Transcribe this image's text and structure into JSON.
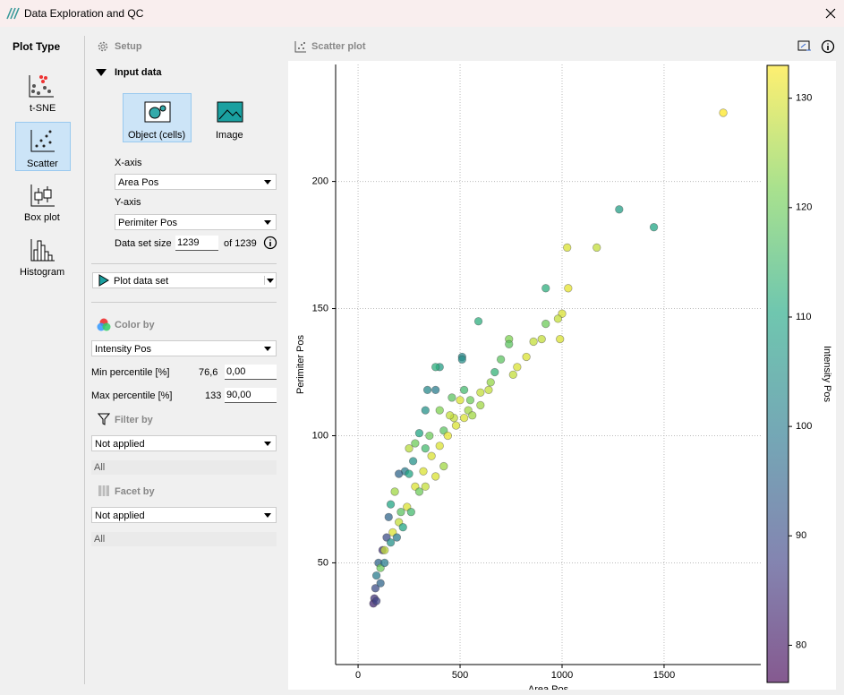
{
  "window": {
    "title": "Data Exploration and QC"
  },
  "plot_types": {
    "heading": "Plot Type",
    "items": [
      "t-SNE",
      "Scatter",
      "Box plot",
      "Histogram"
    ],
    "selected": "Scatter"
  },
  "setup": {
    "heading": "Setup",
    "input_heading": "Input data",
    "sources": [
      "Object (cells)",
      "Image"
    ],
    "x_label": "X-axis",
    "x_value": "Area Pos",
    "y_label": "Y-axis",
    "y_value": "Perimiter Pos",
    "size_label": "Data set size",
    "size_value": "1239",
    "size_total": "of 1239",
    "plot_button": "Plot data set",
    "color_heading": "Color by",
    "color_value": "Intensity Pos",
    "min_label": "Min percentile [%]",
    "min_actual": "76,6",
    "min_value": "0,00",
    "max_label": "Max percentile [%]",
    "max_actual": "133",
    "max_value": "90,00",
    "filter_heading": "Filter by",
    "filter_value": "Not applied",
    "filter_sub": "All",
    "facet_heading": "Facet by",
    "facet_value": "Not applied",
    "facet_sub": "All"
  },
  "plot_panel": {
    "heading": "Scatter plot"
  },
  "chart_data": {
    "type": "scatter",
    "xlabel": "Area Pos",
    "ylabel": "Perimiter Pos",
    "colorbar_label": "Intensity Pos",
    "xlim": [
      -110,
      1974
    ],
    "ylim": [
      10,
      246
    ],
    "xticks": [
      0,
      500,
      1000,
      1500
    ],
    "yticks": [
      50,
      100,
      150,
      200
    ],
    "grid": true,
    "clim": [
      76.6,
      133
    ],
    "cticks": [
      80,
      90,
      100,
      110,
      120,
      130
    ],
    "colormap": [
      "#440154",
      "#414487",
      "#2a788e",
      "#22a884",
      "#7ad151",
      "#fde725"
    ],
    "x": [
      1790,
      1280,
      1450,
      1170,
      1025,
      1030,
      1000,
      980,
      920,
      920,
      990,
      900,
      860,
      825,
      780,
      760,
      740,
      740,
      700,
      670,
      650,
      640,
      600,
      590,
      510,
      510,
      400,
      380,
      340,
      380,
      520,
      550,
      540,
      500,
      470,
      420,
      300,
      280,
      250,
      230,
      200,
      180,
      160,
      150,
      140,
      120,
      100,
      90,
      85,
      80,
      75,
      90,
      110,
      130,
      170,
      200,
      240,
      280,
      320,
      360,
      400,
      440,
      480,
      520,
      300,
      260,
      220,
      190,
      250,
      350,
      450,
      600,
      560,
      420,
      380,
      330,
      210,
      160,
      130,
      110,
      270,
      330,
      400,
      460,
      330
    ],
    "values": [
      227,
      189,
      182,
      174,
      174,
      158,
      148,
      146,
      144,
      158,
      138,
      138,
      137,
      131,
      127,
      124,
      138,
      136,
      130,
      125,
      121,
      118,
      117,
      145,
      131,
      130,
      127,
      127,
      118,
      118,
      118,
      114,
      110,
      114,
      107,
      102,
      101,
      97,
      95,
      86,
      85,
      78,
      73,
      68,
      60,
      55,
      50,
      45,
      40,
      36,
      34,
      35,
      48,
      55,
      62,
      66,
      72,
      80,
      86,
      92,
      96,
      100,
      104,
      107,
      78,
      70,
      64,
      60,
      85,
      100,
      108,
      112,
      108,
      88,
      84,
      80,
      70,
      58,
      50,
      42,
      90,
      95,
      110,
      115,
      110
    ],
    "color_values": [
      133,
      108,
      110,
      128,
      130,
      131,
      130,
      128,
      120,
      112,
      130,
      128,
      128,
      130,
      130,
      128,
      122,
      118,
      118,
      113,
      124,
      128,
      128,
      112,
      103,
      104,
      108,
      112,
      103,
      100,
      115,
      120,
      125,
      130,
      128,
      118,
      110,
      120,
      127,
      100,
      95,
      125,
      110,
      95,
      90,
      85,
      95,
      100,
      90,
      85,
      83,
      88,
      120,
      128,
      130,
      128,
      130,
      130,
      130,
      130,
      130,
      131,
      130,
      130,
      120,
      115,
      110,
      100,
      110,
      120,
      128,
      125,
      125,
      125,
      130,
      128,
      118,
      105,
      100,
      95,
      105,
      115,
      122,
      118,
      105
    ]
  }
}
